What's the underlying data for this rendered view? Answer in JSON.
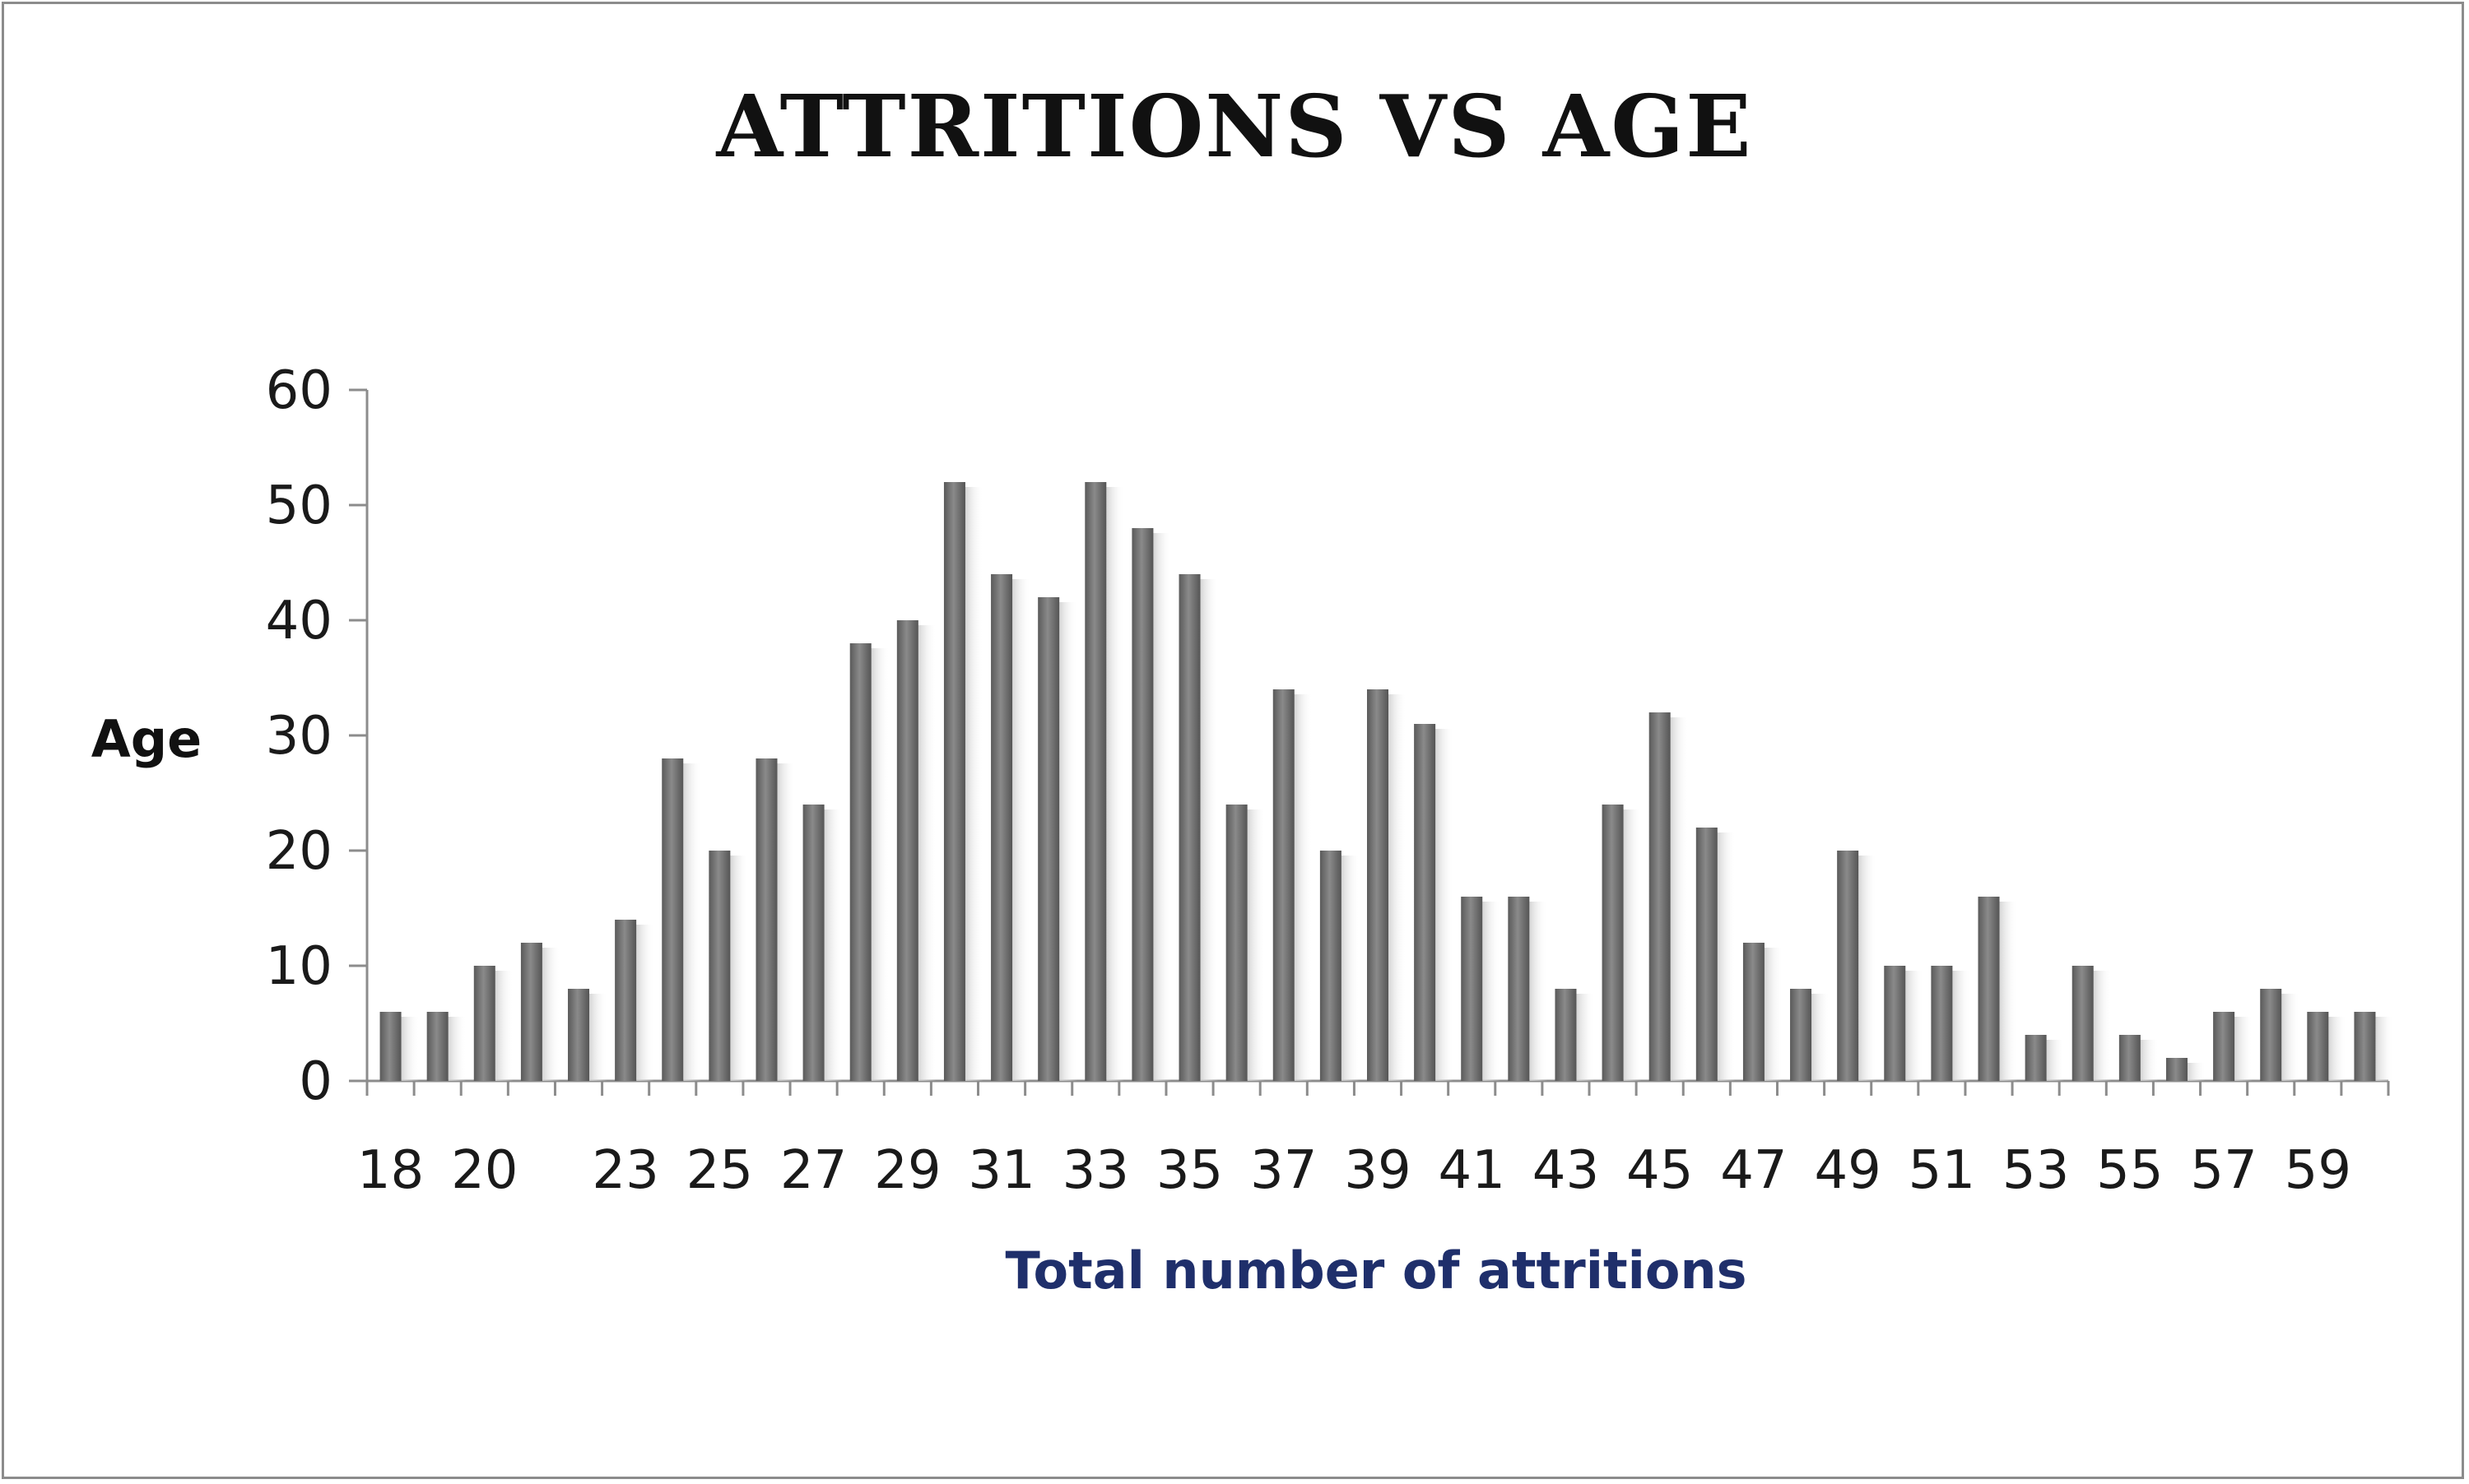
{
  "chart_data": {
    "type": "bar",
    "title": "ATTRITIONS VS AGE",
    "xlabel": "Total number of attritions",
    "ylabel": "Age",
    "ylim": [
      0,
      60
    ],
    "yticks": [
      0,
      10,
      20,
      30,
      40,
      50,
      60
    ],
    "grid": false,
    "legend": "none",
    "bar_color": "#6e6e6e",
    "categories": [
      "18",
      "19",
      "20",
      "21",
      "22",
      "23",
      "24",
      "25",
      "26",
      "27",
      "28",
      "29",
      "30",
      "31",
      "32",
      "33",
      "34",
      "35",
      "36",
      "37",
      "38",
      "39",
      "40",
      "41",
      "42",
      "43",
      "44",
      "45",
      "46",
      "47",
      "48",
      "49",
      "50",
      "51",
      "52",
      "53",
      "54",
      "55",
      "56",
      "57",
      "58",
      "59",
      "60"
    ],
    "xtick_labels": [
      "18",
      "20",
      "23",
      "25",
      "27",
      "29",
      "31",
      "33",
      "35",
      "37",
      "39",
      "41",
      "43",
      "45",
      "47",
      "49",
      "51",
      "53",
      "55",
      "57",
      "59"
    ],
    "values": [
      6,
      6,
      10,
      12,
      8,
      14,
      28,
      20,
      28,
      24,
      38,
      40,
      52,
      44,
      42,
      52,
      48,
      44,
      24,
      34,
      20,
      34,
      31,
      16,
      16,
      8,
      24,
      32,
      22,
      12,
      8,
      20,
      10,
      10,
      16,
      4,
      10,
      4,
      2,
      6,
      8,
      6,
      6
    ]
  }
}
